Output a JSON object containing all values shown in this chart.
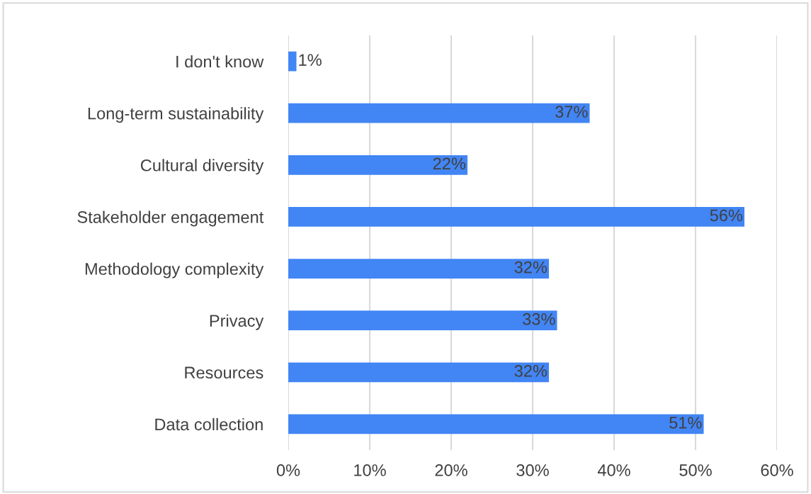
{
  "chart_data": {
    "type": "bar",
    "orientation": "horizontal",
    "categories": [
      "I don't know",
      "Long-term sustainability",
      "Cultural diversity",
      "Stakeholder engagement",
      "Methodology complexity",
      "Privacy",
      "Resources",
      "Data collection"
    ],
    "values": [
      1,
      37,
      22,
      56,
      32,
      33,
      32,
      51
    ],
    "value_labels": [
      "1%",
      "37%",
      "22%",
      "56%",
      "32%",
      "33%",
      "32%",
      "51%"
    ],
    "color": "#4285f4",
    "xlim": [
      0,
      60
    ],
    "xticks": [
      {
        "value": 0,
        "label": "0%"
      },
      {
        "value": 10,
        "label": "10%"
      },
      {
        "value": 20,
        "label": "20%"
      },
      {
        "value": 30,
        "label": "30%"
      },
      {
        "value": 40,
        "label": "40%"
      },
      {
        "value": 50,
        "label": "50%"
      },
      {
        "value": 60,
        "label": "60%"
      }
    ],
    "grid": "x"
  }
}
